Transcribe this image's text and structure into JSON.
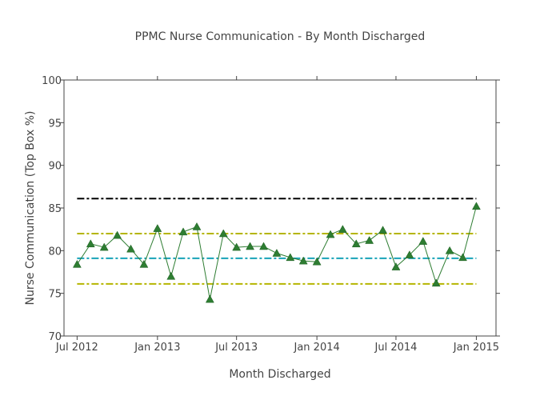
{
  "chart_data": {
    "type": "line",
    "title": "PPMC Nurse Communication - By Month Discharged",
    "xlabel": "Month Discharged",
    "ylabel": "Nurse Communication (Top Box %)",
    "ylim": [
      70,
      100
    ],
    "yticks": [
      70,
      75,
      80,
      85,
      90,
      95,
      100
    ],
    "xlim": [
      "2012-06-01",
      "2015-02-15"
    ],
    "xticks": [
      {
        "date": "2012-07-01",
        "label": "Jul 2012"
      },
      {
        "date": "2013-01-01",
        "label": "Jan 2013"
      },
      {
        "date": "2013-07-01",
        "label": "Jul 2013"
      },
      {
        "date": "2014-01-01",
        "label": "Jan 2014"
      },
      {
        "date": "2014-07-01",
        "label": "Jul 2014"
      },
      {
        "date": "2015-01-01",
        "label": "Jan 2015"
      }
    ],
    "grid": false,
    "legend": false,
    "series": [
      {
        "color": "#2e7d32",
        "marker": "triangle-up",
        "x": [
          "2012-07-01",
          "2012-08-01",
          "2012-09-01",
          "2012-10-01",
          "2012-11-01",
          "2012-12-01",
          "2013-01-01",
          "2013-02-01",
          "2013-03-01",
          "2013-04-01",
          "2013-05-01",
          "2013-06-01",
          "2013-07-01",
          "2013-08-01",
          "2013-09-01",
          "2013-10-01",
          "2013-11-01",
          "2013-12-01",
          "2014-01-01",
          "2014-02-01",
          "2014-03-01",
          "2014-04-01",
          "2014-05-01",
          "2014-06-01",
          "2014-07-01",
          "2014-08-01",
          "2014-09-01",
          "2014-10-01",
          "2014-11-01",
          "2014-12-01",
          "2015-01-01"
        ],
        "y": [
          78.4,
          80.8,
          80.4,
          81.8,
          80.2,
          78.4,
          82.6,
          77.0,
          82.2,
          82.8,
          74.3,
          82.0,
          80.4,
          80.5,
          80.5,
          79.7,
          79.2,
          78.8,
          78.7,
          81.9,
          82.5,
          80.8,
          81.2,
          82.4,
          78.1,
          79.5,
          81.1,
          76.2,
          80.0,
          79.2,
          85.2
        ]
      }
    ],
    "reference_lines": [
      {
        "y": 86.1,
        "color": "#000000",
        "style": "dashdot"
      },
      {
        "y": 82.0,
        "color": "#b5b500",
        "style": "dashdot"
      },
      {
        "y": 79.1,
        "color": "#17a2b8",
        "style": "dashdot"
      },
      {
        "y": 76.1,
        "color": "#b5b500",
        "style": "dashdot"
      }
    ]
  }
}
